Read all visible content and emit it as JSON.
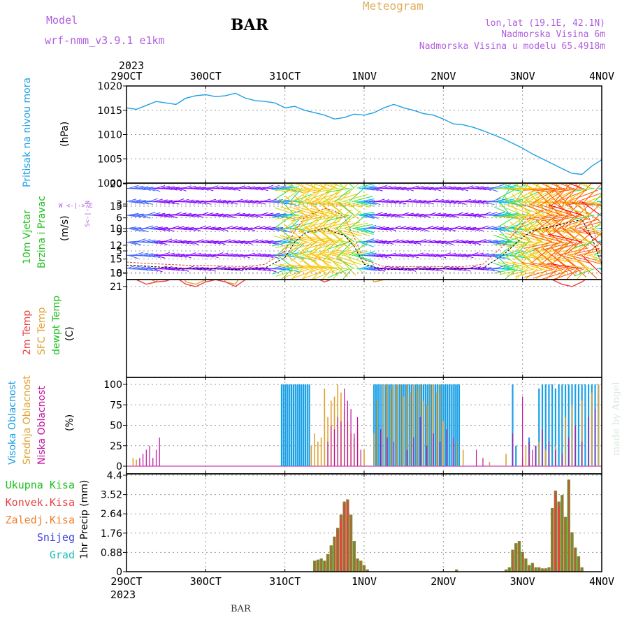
{
  "header": {
    "model_label": "Model",
    "model_name": "wrf-nmm_v3.9.1  e1km",
    "station": "BAR",
    "title": "Meteogram",
    "lonlat": "lon,lat (19.1E, 42.1N)",
    "elevation": "Nadmorska Visina 6m",
    "model_elevation": "Nadmorska Visina u modelu 65.4918m",
    "year": "2023",
    "footer_station": "BAR",
    "watermark": "made by Angel"
  },
  "x_axis": {
    "ticks": [
      "29OCT",
      "30OCT",
      "31OCT",
      "1NOV",
      "2NOV",
      "3NOV",
      "4NOV"
    ],
    "start_hour": 0,
    "end_hour": 144
  },
  "colors": {
    "pressure": "#1ea0e6",
    "temp2m": "#e84040",
    "sfc": "#e0a030",
    "dewpt": "#20d020",
    "high": "#1aa0e6",
    "mid": "#e0a030",
    "low": "#c010a0",
    "total": "#20c020",
    "convective": "#e84040",
    "frozen": "#f08030",
    "snow": "#4040e0",
    "grad": "#20c0c0",
    "purple": "#b060e0"
  },
  "panels": {
    "pressure": {
      "label1": "Pritisak na nivou mora",
      "unit": "(hPa)"
    },
    "wind": {
      "label1": "10m Vjetar",
      "label2": "Brzina i Pravac",
      "unit": "(m/s)",
      "compass_ew": "W   <-|->   E",
      "compass_sn": "S<-|->N"
    },
    "temp": {
      "label1": "2m Temp",
      "label2": "SFC Temp",
      "label3": "dewpt Temp",
      "unit": "(C)"
    },
    "cloud": {
      "label1": "Visoka Oblacnost",
      "label2": "Srednja Oblacnost",
      "label3": "Niska Oblacnost",
      "unit": "(%)"
    },
    "precip": {
      "label": "1hr Precip (mm)",
      "legend": [
        "Ukupna Kisa",
        "Konvek.Kisa",
        "Zaledj.Kisa",
        "Snijeg",
        "Grad"
      ]
    }
  },
  "chart_data": [
    {
      "type": "line",
      "name": "pressure",
      "ylabel": "(hPa)",
      "ylim": [
        1000,
        1020
      ],
      "yticks": [
        "1020",
        "1015",
        "1010",
        "1005",
        "1000"
      ],
      "x": [
        0,
        3,
        6,
        9,
        12,
        15,
        18,
        21,
        24,
        27,
        30,
        33,
        36,
        39,
        42,
        45,
        48,
        51,
        54,
        57,
        60,
        63,
        66,
        69,
        72,
        75,
        78,
        81,
        84,
        87,
        90,
        93,
        96,
        99,
        102,
        105,
        108,
        111,
        114,
        117,
        120,
        123,
        126,
        129,
        132,
        135,
        138,
        141,
        144
      ],
      "series": [
        {
          "values": [
            1015.5,
            1015.2,
            1016.0,
            1016.8,
            1016.5,
            1016.2,
            1017.5,
            1018.0,
            1018.2,
            1017.8,
            1018.0,
            1018.5,
            1017.5,
            1017.0,
            1016.8,
            1016.5,
            1015.5,
            1015.8,
            1015.0,
            1014.5,
            1014.0,
            1013.2,
            1013.5,
            1014.2,
            1014.0,
            1014.5,
            1015.5,
            1016.2,
            1015.5,
            1015.0,
            1014.3,
            1014.0,
            1013.2,
            1012.2,
            1012.0,
            1011.5,
            1010.8,
            1010.0,
            1009.2,
            1008.2,
            1007.2,
            1006.0,
            1005.0,
            1004.0,
            1003.0,
            1002.0,
            1001.8,
            1003.5,
            1004.8
          ]
        }
      ]
    },
    {
      "type": "line",
      "name": "wind",
      "ylabel": "(m/s)",
      "ylim": [
        0,
        20
      ],
      "yticks": [
        "20",
        "15",
        "10",
        "5",
        "0"
      ],
      "x": [
        0,
        6,
        12,
        18,
        24,
        30,
        36,
        42,
        48,
        51,
        54,
        57,
        60,
        63,
        66,
        69,
        72,
        78,
        84,
        90,
        96,
        102,
        108,
        114,
        120,
        123,
        126,
        129,
        132,
        135,
        138,
        141,
        144
      ],
      "series": [
        {
          "values": [
            1.8,
            1.6,
            1.3,
            1.0,
            1.0,
            0.9,
            0.8,
            1.2,
            3.5,
            7.0,
            9.0,
            9.5,
            10.0,
            9.2,
            8.5,
            6.0,
            2.0,
            0.8,
            0.9,
            0.9,
            1.0,
            1.0,
            1.2,
            4.0,
            8.0,
            9.5,
            10.0,
            10.5,
            11.0,
            11.5,
            12.0,
            8.0,
            2.0
          ]
        },
        {
          "values": [
            2.5,
            2.2,
            2.0,
            1.8,
            1.8,
            1.6,
            1.5,
            2.0,
            5.0,
            9.5,
            12.5,
            13.5,
            14.5,
            14.0,
            12.5,
            8.0,
            3.0,
            1.5,
            1.5,
            1.5,
            1.5,
            1.5,
            2.0,
            6.0,
            11.0,
            13.0,
            14.0,
            14.5,
            15.0,
            15.5,
            16.0,
            11.0,
            3.0
          ]
        }
      ]
    },
    {
      "type": "line",
      "name": "temperature",
      "ylabel": "(C)",
      "ylim": [
        1.5,
        22.5
      ],
      "yticks": [
        "21",
        "18",
        "15",
        "12",
        "9",
        "6",
        "3"
      ],
      "x": [
        0,
        3,
        6,
        9,
        12,
        15,
        18,
        21,
        24,
        27,
        30,
        33,
        36,
        39,
        42,
        45,
        48,
        51,
        54,
        57,
        60,
        63,
        66,
        69,
        72,
        75,
        78,
        81,
        84,
        87,
        90,
        93,
        96,
        99,
        102,
        105,
        108,
        111,
        114,
        117,
        120,
        123,
        126,
        129,
        132,
        135,
        138,
        141,
        144
      ],
      "series": [
        {
          "name": "2m Temp",
          "values": [
            18.5,
            19.5,
            20.5,
            20.0,
            19.8,
            19.0,
            20.5,
            21.0,
            20.0,
            19.5,
            20.0,
            21.0,
            19.5,
            19.0,
            18.8,
            18.5,
            18.0,
            18.5,
            19.5,
            19.0,
            20.0,
            19.2,
            18.5,
            18.0,
            17.5,
            19.0,
            19.5,
            18.5,
            18.0,
            18.5,
            18.0,
            17.8,
            17.5,
            18.5,
            18.0,
            18.2,
            17.5,
            18.0,
            17.2,
            18.0,
            18.5,
            18.2,
            18.8,
            19.5,
            20.5,
            21.0,
            20.0,
            18.5,
            16.0
          ]
        },
        {
          "name": "SFC Temp",
          "values": [
            16.0,
            15.0,
            19.0,
            20.0,
            16.5,
            16.0,
            20.0,
            20.5,
            19.5,
            16.0,
            20.0,
            20.5,
            17.0,
            17.0,
            16.5,
            16.0,
            16.5,
            16.0,
            18.5,
            18.0,
            18.5,
            18.0,
            17.5,
            16.5,
            16.0,
            20.0,
            19.5,
            17.5,
            16.5,
            17.5,
            17.0,
            16.5,
            15.5,
            17.0,
            17.5,
            19.5,
            16.5,
            17.5,
            15.0,
            16.5,
            16.0,
            16.0,
            17.5,
            17.5,
            18.5,
            19.5,
            18.0,
            17.5,
            15.5
          ]
        },
        {
          "name": "dewpt Temp",
          "values": [
            13.0,
            12.0,
            13.5,
            13.5,
            12.5,
            11.5,
            12.5,
            11.5,
            12.0,
            12.0,
            9.5,
            11.0,
            12.0,
            8.0,
            13.0,
            12.5,
            14.0,
            11.5,
            13.0,
            17.0,
            18.0,
            18.5,
            18.5,
            18.0,
            13.5,
            11.5,
            10.0,
            9.0,
            9.5,
            7.0,
            8.5,
            6.0,
            3.0,
            2.5,
            4.5,
            3.0,
            6.5,
            7.0,
            8.0,
            9.5,
            13.0,
            13.0,
            15.0,
            15.5,
            17.0,
            17.5,
            16.5,
            14.5,
            10.0
          ]
        }
      ]
    },
    {
      "type": "bar",
      "name": "cloud",
      "ylabel": "(%)",
      "ylim": [
        0,
        100
      ],
      "yticks": [
        "100",
        "75",
        "50",
        "25",
        "0"
      ],
      "series": [
        {
          "name": "Visoka Oblacnost",
          "x": [
            47,
            47.6,
            48.2,
            48.8,
            49.4,
            50,
            50.6,
            51.2,
            51.8,
            52.4,
            53,
            53.6,
            54.2,
            54.8,
            55.4,
            75,
            75.6,
            76.2,
            76.8,
            77.4,
            78,
            78.6,
            79.2,
            79.8,
            80.4,
            81,
            81.6,
            82.2,
            82.8,
            83.4,
            84,
            84.6,
            85.2,
            85.8,
            86.4,
            87,
            87.6,
            88.2,
            88.8,
            89.4,
            90,
            90.6,
            91.2,
            91.8,
            92.4,
            93,
            93.6,
            94.2,
            94.8,
            95.4,
            96,
            96.6,
            97.2,
            97.8,
            98.4,
            99,
            99.6,
            100.2,
            100.8,
            117,
            118,
            122,
            124,
            125,
            126,
            127,
            128,
            129,
            130,
            131,
            132,
            133,
            134,
            135,
            136,
            137,
            138,
            139,
            140,
            141,
            142,
            143
          ],
          "values": [
            100,
            100,
            100,
            100,
            100,
            100,
            100,
            100,
            100,
            100,
            100,
            100,
            100,
            100,
            100,
            100,
            100,
            100,
            100,
            100,
            100,
            100,
            100,
            100,
            100,
            100,
            100,
            100,
            100,
            100,
            100,
            100,
            100,
            100,
            100,
            100,
            100,
            100,
            100,
            100,
            100,
            100,
            100,
            100,
            100,
            100,
            100,
            100,
            100,
            100,
            100,
            100,
            100,
            100,
            100,
            100,
            100,
            100,
            100,
            100,
            25,
            35,
            25,
            95,
            100,
            100,
            100,
            100,
            95,
            100,
            100,
            100,
            100,
            100,
            100,
            100,
            100,
            100,
            100,
            100,
            100,
            100
          ]
        },
        {
          "name": "Srednja Oblacnost",
          "x": [
            2,
            3,
            56,
            57,
            58,
            59,
            60,
            61,
            62,
            63,
            64,
            65,
            66,
            67,
            68,
            69,
            70,
            72,
            75,
            76,
            78,
            79,
            80,
            81,
            82,
            83,
            84,
            85,
            86,
            87,
            88,
            89,
            90,
            91,
            92,
            93,
            94,
            95,
            96,
            100,
            102,
            110,
            115,
            120,
            121,
            122,
            125,
            127,
            130,
            133,
            135,
            138,
            141,
            143
          ],
          "values": [
            10,
            8,
            25,
            40,
            30,
            35,
            95,
            60,
            80,
            85,
            100,
            90,
            70,
            55,
            40,
            35,
            45,
            20,
            40,
            80,
            100,
            100,
            95,
            100,
            100,
            100,
            85,
            100,
            90,
            100,
            95,
            100,
            80,
            75,
            100,
            100,
            90,
            100,
            55,
            30,
            20,
            5,
            15,
            10,
            25,
            15,
            30,
            20,
            25,
            60,
            75,
            80,
            90,
            100
          ]
        },
        {
          "name": "Niska Oblacnost",
          "x": [
            4,
            5,
            6,
            7,
            8,
            9,
            10,
            61,
            62,
            63,
            64,
            65,
            66,
            67,
            68,
            69,
            70,
            71,
            77,
            79,
            81,
            85,
            87,
            89,
            91,
            93,
            95,
            97,
            99,
            106,
            108,
            117,
            120,
            122,
            123,
            124,
            126,
            128,
            130,
            132,
            134,
            136,
            138,
            140,
            142
          ],
          "values": [
            10,
            15,
            20,
            25,
            10,
            20,
            35,
            30,
            50,
            45,
            60,
            55,
            95,
            80,
            70,
            40,
            60,
            20,
            45,
            35,
            30,
            20,
            35,
            60,
            25,
            40,
            30,
            45,
            35,
            20,
            10,
            40,
            85,
            30,
            20,
            25,
            45,
            30,
            20,
            15,
            35,
            50,
            30,
            60,
            70
          ]
        }
      ]
    },
    {
      "type": "bar",
      "name": "precip",
      "ylabel": "1hr Precip (mm)",
      "ylim": [
        0,
        4.4
      ],
      "yticks": [
        "4.4",
        "3.52",
        "2.64",
        "1.76",
        "0.88",
        "0"
      ],
      "series": [
        {
          "name": "Ukupna Kisa",
          "x": [
            57,
            58,
            59,
            60,
            61,
            62,
            63,
            64,
            65,
            66,
            67,
            68,
            69,
            70,
            71,
            72,
            73,
            100,
            115,
            116,
            117,
            118,
            119,
            120,
            121,
            122,
            123,
            124,
            125,
            126,
            127,
            128,
            129,
            130,
            131,
            132,
            133,
            134,
            135,
            136,
            137,
            138
          ],
          "values": [
            0.5,
            0.55,
            0.6,
            0.5,
            0.8,
            1.2,
            1.6,
            2.0,
            2.6,
            3.2,
            3.3,
            2.6,
            1.4,
            0.6,
            0.5,
            0.3,
            0.1,
            0.1,
            0.1,
            0.2,
            1.0,
            1.3,
            1.4,
            0.9,
            0.6,
            0.3,
            0.4,
            0.2,
            0.2,
            0.15,
            0.15,
            0.2,
            2.9,
            3.7,
            3.2,
            3.5,
            2.5,
            4.2,
            1.8,
            1.1,
            0.7,
            0.2
          ]
        },
        {
          "name": "Konvek.Kisa",
          "x": [
            64,
            65,
            66,
            67,
            130,
            131
          ],
          "values": [
            1.9,
            2.4,
            3.1,
            3.2,
            3.6,
            3.0
          ]
        }
      ]
    }
  ]
}
